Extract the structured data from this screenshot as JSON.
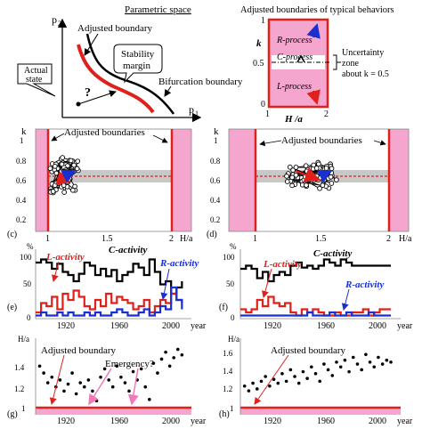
{
  "top_left": {
    "title": "Parametric space",
    "axis_y": "p",
    "axis_y_sub": "2",
    "axis_x": "p",
    "axis_x_sub": "1",
    "label_adjusted": "Adjusted boundary",
    "label_margin_1": "Stability",
    "label_margin_2": "margin",
    "label_bifurcation": "Bifurcation boundary",
    "label_actual_1": "Actual",
    "label_actual_2": "state",
    "question": "?"
  },
  "top_right": {
    "title": "Adjusted boundaries of typical behaviors",
    "axis_k": "k",
    "tick_1": "1",
    "tick_05": "0.5",
    "tick_0": "0",
    "r_process": "R-process",
    "c_process": "C-process",
    "l_process": "L-process",
    "x_tick_1": "1",
    "x_tick_2": "2",
    "x_label": "H /a",
    "uncert_1": "Uncertainty",
    "uncert_2": "zone",
    "uncert_3": "about k = 0.5"
  },
  "panel_c": {
    "letter": "(c)",
    "k_label": "k",
    "yticks": [
      "1",
      "0.8",
      "0.6",
      "0.4",
      "0.2"
    ],
    "xticks": [
      "1",
      "1.5",
      "2"
    ],
    "x_label": "H/a",
    "annotation": "Adjusted boundaries"
  },
  "panel_d": {
    "letter": "(d)",
    "k_label": "k",
    "yticks": [
      "1",
      "0.8",
      "0.6",
      "0.4",
      "0.2"
    ],
    "xticks": [
      "1",
      "1.5",
      "2"
    ],
    "x_label": "H/a",
    "annotation": "Adjusted boundaries"
  },
  "panel_e": {
    "letter": "(e)",
    "unit": "%",
    "yticks": [
      "100",
      "50",
      "0"
    ],
    "xticks": [
      "1920",
      "1960",
      "2000"
    ],
    "x_label": "year",
    "l_activity": "L-activity",
    "c_activity": "C-activity",
    "r_activity": "R-activity"
  },
  "panel_f": {
    "letter": "(f)",
    "unit": "%",
    "yticks": [
      "100",
      "50",
      "0"
    ],
    "xticks": [
      "1920",
      "1960",
      "2000"
    ],
    "x_label": "year",
    "l_activity": "L-activity",
    "c_activity": "C-activity",
    "r_activity": "R-activity"
  },
  "panel_g": {
    "letter": "(g)",
    "unit": "H/a",
    "yticks": [
      "1.4",
      "1.2",
      "1"
    ],
    "xticks": [
      "1920",
      "1960",
      "2000"
    ],
    "x_label": "year",
    "adjusted": "Adjusted boundary",
    "emergency": "Emergency?"
  },
  "panel_h": {
    "letter": "(h)",
    "unit": "H/a",
    "yticks": [
      "1.6",
      "1.4",
      "1.2",
      "1"
    ],
    "xticks": [
      "1920",
      "1960",
      "2000"
    ],
    "x_label": "year",
    "adjusted": "Adjusted boundary"
  },
  "colors": {
    "red": "#e0201a",
    "blue": "#1a2fd0",
    "pink": "#f4a6cf",
    "gray": "#c8c8c8",
    "pink_line": "#f07ab8"
  },
  "chart_data": [
    {
      "id": "e",
      "type": "line",
      "xlim": [
        1900,
        2015
      ],
      "ylim": [
        0,
        100
      ],
      "series": [
        {
          "name": "C-activity",
          "color": "#000000",
          "x": [
            1900,
            1904,
            1908,
            1912,
            1916,
            1920,
            1924,
            1928,
            1932,
            1936,
            1940,
            1944,
            1948,
            1952,
            1956,
            1960,
            1964,
            1968,
            1972,
            1976,
            1980,
            1984,
            1988,
            1992,
            1996,
            2000,
            2004,
            2008
          ],
          "values": [
            90,
            95,
            90,
            80,
            88,
            75,
            70,
            60,
            72,
            90,
            85,
            70,
            80,
            68,
            78,
            60,
            70,
            75,
            88,
            82,
            70,
            95,
            75,
            55,
            60,
            40,
            50,
            60
          ]
        },
        {
          "name": "L-activity",
          "color": "#e0201a",
          "x": [
            1900,
            1904,
            1908,
            1912,
            1916,
            1920,
            1924,
            1928,
            1932,
            1936,
            1940,
            1944,
            1948,
            1952,
            1956,
            1960,
            1964,
            1968,
            1972,
            1976,
            1980,
            1984,
            1988,
            1992,
            1996,
            2000,
            2004,
            2008
          ],
          "values": [
            10,
            25,
            20,
            35,
            15,
            40,
            30,
            45,
            35,
            20,
            15,
            30,
            20,
            40,
            25,
            35,
            30,
            25,
            15,
            20,
            30,
            10,
            20,
            30,
            25,
            40,
            30,
            25
          ]
        },
        {
          "name": "R-activity",
          "color": "#1a2fd0",
          "x": [
            1900,
            1904,
            1908,
            1912,
            1916,
            1920,
            1924,
            1928,
            1932,
            1936,
            1940,
            1944,
            1948,
            1952,
            1956,
            1960,
            1964,
            1968,
            1972,
            1976,
            1980,
            1984,
            1988,
            1992,
            1996,
            2000,
            2004,
            2008
          ],
          "values": [
            5,
            10,
            5,
            5,
            10,
            5,
            10,
            5,
            5,
            10,
            5,
            10,
            5,
            5,
            10,
            15,
            10,
            5,
            5,
            10,
            15,
            5,
            10,
            20,
            15,
            50,
            30,
            15
          ]
        }
      ]
    },
    {
      "id": "f",
      "type": "line",
      "xlim": [
        1900,
        2015
      ],
      "ylim": [
        0,
        100
      ],
      "series": [
        {
          "name": "C-activity",
          "color": "#000000",
          "x": [
            1900,
            1904,
            1908,
            1912,
            1916,
            1920,
            1924,
            1928,
            1932,
            1936,
            1940,
            1944,
            1948,
            1952,
            1956,
            1960,
            1964,
            1968,
            1972,
            1976,
            1980,
            1984,
            1988,
            1992,
            1996,
            2000,
            2004,
            2008
          ],
          "values": [
            80,
            85,
            80,
            65,
            75,
            60,
            70,
            75,
            70,
            85,
            90,
            82,
            85,
            80,
            85,
            95,
            90,
            85,
            95,
            90,
            85,
            85,
            85,
            85,
            85,
            85,
            85,
            85
          ]
        },
        {
          "name": "L-activity",
          "color": "#e0201a",
          "x": [
            1900,
            1904,
            1908,
            1912,
            1916,
            1920,
            1924,
            1928,
            1932,
            1936,
            1940,
            1944,
            1948,
            1952,
            1956,
            1960,
            1964,
            1968,
            1972,
            1976,
            1980,
            1984,
            1988,
            1992,
            1996,
            2000,
            2004,
            2008
          ],
          "values": [
            15,
            10,
            15,
            30,
            20,
            35,
            25,
            20,
            25,
            10,
            5,
            15,
            10,
            15,
            10,
            5,
            5,
            10,
            5,
            5,
            10,
            10,
            15,
            5,
            10,
            15,
            15,
            15
          ]
        },
        {
          "name": "R-activity",
          "color": "#1a2fd0",
          "x": [
            1900,
            1904,
            1908,
            1912,
            1916,
            1920,
            1924,
            1928,
            1932,
            1936,
            1940,
            1944,
            1948,
            1952,
            1956,
            1960,
            1964,
            1968,
            1972,
            1976,
            1980,
            1984,
            1988,
            1992,
            1996,
            2000,
            2004,
            2008
          ],
          "values": [
            5,
            5,
            5,
            5,
            5,
            5,
            5,
            5,
            5,
            5,
            5,
            5,
            10,
            5,
            5,
            5,
            10,
            5,
            5,
            10,
            5,
            5,
            5,
            10,
            5,
            5,
            5,
            5
          ]
        }
      ]
    },
    {
      "id": "g",
      "type": "scatter",
      "xlim": [
        1900,
        2015
      ],
      "ylim": [
        0.95,
        1.5
      ],
      "x": [
        1903,
        1906,
        1909,
        1912,
        1915,
        1918,
        1921,
        1924,
        1927,
        1930,
        1933,
        1936,
        1939,
        1942,
        1945,
        1948,
        1951,
        1954,
        1957,
        1960,
        1963,
        1966,
        1969,
        1972,
        1975,
        1978,
        1981,
        1984,
        1987,
        1990,
        1993,
        1996,
        1999,
        2002,
        2005,
        2008
      ],
      "values": [
        1.3,
        1.25,
        1.18,
        1.22,
        1.15,
        1.2,
        1.12,
        1.17,
        1.25,
        1.1,
        1.18,
        1.15,
        1.2,
        1.12,
        1.05,
        1.22,
        1.28,
        1.2,
        1.15,
        1.3,
        1.22,
        1.18,
        1.12,
        1.26,
        1.2,
        1.28,
        1.15,
        1.06,
        1.32,
        1.25,
        1.35,
        1.4,
        1.3,
        1.36,
        1.42,
        1.38
      ]
    },
    {
      "id": "h",
      "type": "scatter",
      "xlim": [
        1900,
        2015
      ],
      "ylim": [
        0.95,
        1.75
      ],
      "x": [
        1903,
        1906,
        1909,
        1912,
        1915,
        1918,
        1921,
        1924,
        1927,
        1930,
        1933,
        1936,
        1939,
        1942,
        1945,
        1948,
        1951,
        1954,
        1957,
        1960,
        1963,
        1966,
        1969,
        1972,
        1975,
        1978,
        1981,
        1984,
        1987,
        1990,
        1993,
        1996,
        1999,
        2002,
        2005,
        2008
      ],
      "values": [
        1.25,
        1.2,
        1.28,
        1.22,
        1.3,
        1.35,
        1.25,
        1.32,
        1.28,
        1.38,
        1.3,
        1.42,
        1.35,
        1.28,
        1.4,
        1.33,
        1.45,
        1.38,
        1.3,
        1.48,
        1.42,
        1.36,
        1.5,
        1.45,
        1.52,
        1.4,
        1.55,
        1.48,
        1.42,
        1.58,
        1.5,
        1.45,
        1.55,
        1.48,
        1.52,
        1.5
      ]
    }
  ]
}
